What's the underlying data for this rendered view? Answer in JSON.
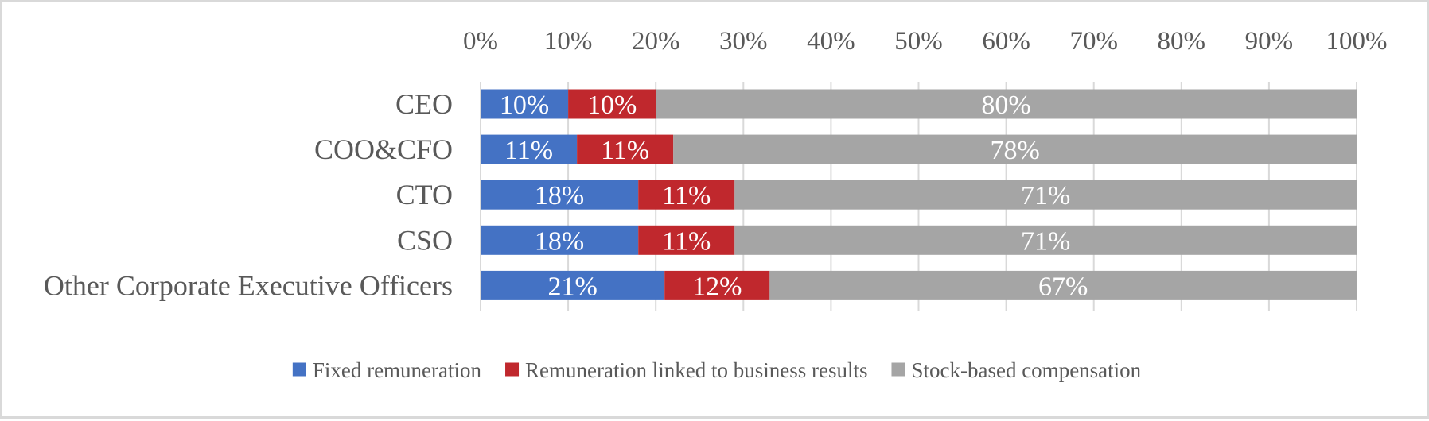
{
  "chart_data": {
    "type": "bar",
    "orientation": "horizontal",
    "stacked": "percent",
    "categories": [
      "CEO",
      "COO&CFO",
      "CTO",
      "CSO",
      "Other Corporate Executive Officers"
    ],
    "series": [
      {
        "name": "Fixed remuneration",
        "color": "#4472c4",
        "values": [
          10,
          11,
          18,
          18,
          21
        ]
      },
      {
        "name": "Remuneration linked to business results",
        "color": "#c0282d",
        "values": [
          10,
          11,
          11,
          11,
          12
        ]
      },
      {
        "name": "Stock-based compensation",
        "color": "#a5a5a5",
        "values": [
          80,
          78,
          71,
          71,
          67
        ]
      }
    ],
    "x_ticks": [
      "0%",
      "10%",
      "20%",
      "30%",
      "40%",
      "50%",
      "60%",
      "70%",
      "80%",
      "90%",
      "100%"
    ],
    "xlim": [
      0,
      100
    ],
    "x_axis_position": "top",
    "gridlines": true,
    "legend_position": "bottom",
    "data_label_suffix": "%",
    "title": "",
    "xlabel": "",
    "ylabel": ""
  }
}
